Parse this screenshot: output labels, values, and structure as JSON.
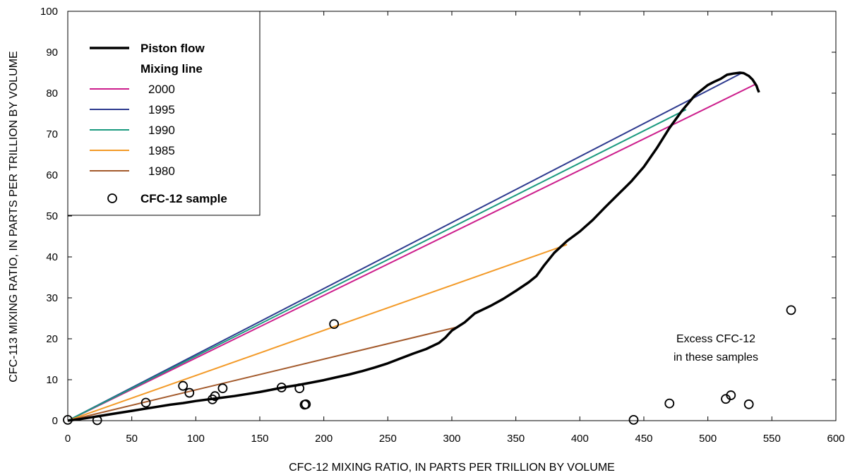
{
  "chart_data": {
    "type": "scatter",
    "xlabel": "CFC-12 MIXING RATIO, IN PARTS PER TRILLION BY VOLUME",
    "ylabel": "CFC-113 MIXING RATIO, IN PARTS PER TRILLION BY VOLUME",
    "xlim": [
      0,
      600
    ],
    "ylim": [
      0,
      100
    ],
    "xticks": [
      0,
      50,
      100,
      150,
      200,
      250,
      300,
      350,
      400,
      450,
      500,
      550,
      600
    ],
    "yticks": [
      0,
      10,
      20,
      30,
      40,
      50,
      60,
      70,
      80,
      90,
      100
    ],
    "grid": false,
    "legend_position": "top-left",
    "piston_flow": {
      "name": "Piston flow",
      "color": "#000000",
      "x": [
        0,
        10,
        20,
        30,
        40,
        50,
        60,
        70,
        80,
        90,
        100,
        110,
        120,
        130,
        140,
        150,
        160,
        170,
        180,
        190,
        200,
        210,
        220,
        230,
        240,
        250,
        260,
        270,
        280,
        290,
        295,
        300,
        310,
        318,
        330,
        340,
        350,
        360,
        366,
        372,
        380,
        390,
        400,
        410,
        420,
        430,
        440,
        450,
        460,
        470,
        480,
        490,
        500,
        505,
        510,
        515,
        520,
        525,
        528,
        532,
        535,
        538,
        539,
        540
      ],
      "y": [
        0,
        0.4,
        0.9,
        1.4,
        1.9,
        2.4,
        2.9,
        3.4,
        3.9,
        4.3,
        4.8,
        5.2,
        5.6,
        6.0,
        6.5,
        7.0,
        7.6,
        8.2,
        8.7,
        9.3,
        9.9,
        10.6,
        11.3,
        12.1,
        13.0,
        14.0,
        15.2,
        16.4,
        17.5,
        19.0,
        20.3,
        22.0,
        24.0,
        26.2,
        28.0,
        29.7,
        31.7,
        33.8,
        35.3,
        37.9,
        41.0,
        43.9,
        46.2,
        49.0,
        52.2,
        55.3,
        58.4,
        62.0,
        66.5,
        71.5,
        75.8,
        79.5,
        82.0,
        82.8,
        83.5,
        84.5,
        84.8,
        85.0,
        84.9,
        84.2,
        83.3,
        81.8,
        80.9,
        80.2
      ]
    },
    "legend_header": "Mixing line",
    "mixing_lines": [
      {
        "name": "2000",
        "color": "#cc1e8c",
        "x": [
          0,
          538
        ],
        "y": [
          0,
          82.3
        ]
      },
      {
        "name": "1995",
        "color": "#2e3b8f",
        "x": [
          0,
          527
        ],
        "y": [
          0,
          85.0
        ]
      },
      {
        "name": "1990",
        "color": "#1a9a7f",
        "x": [
          0,
          483
        ],
        "y": [
          0,
          76.0
        ]
      },
      {
        "name": "1985",
        "color": "#f39a28",
        "x": [
          0,
          390
        ],
        "y": [
          0,
          43.0
        ]
      },
      {
        "name": "1980",
        "color": "#a35a2c",
        "x": [
          0,
          306
        ],
        "y": [
          0,
          23.0
        ]
      }
    ],
    "samples": {
      "name": "CFC-12 sample",
      "x": [
        0,
        23,
        61,
        90,
        95,
        113,
        115,
        121,
        167,
        181,
        185,
        186,
        208,
        442,
        470,
        514,
        518,
        532,
        565
      ],
      "y": [
        0.2,
        0.1,
        4.4,
        8.5,
        6.8,
        5.2,
        6.0,
        7.9,
        8.1,
        7.9,
        3.9,
        4.0,
        23.6,
        0.2,
        4.2,
        5.3,
        6.2,
        4.0,
        27.0
      ]
    },
    "annotation": {
      "lines": [
        "Excess CFC-12",
        "in these samples"
      ],
      "x": 510,
      "y": 19
    }
  }
}
